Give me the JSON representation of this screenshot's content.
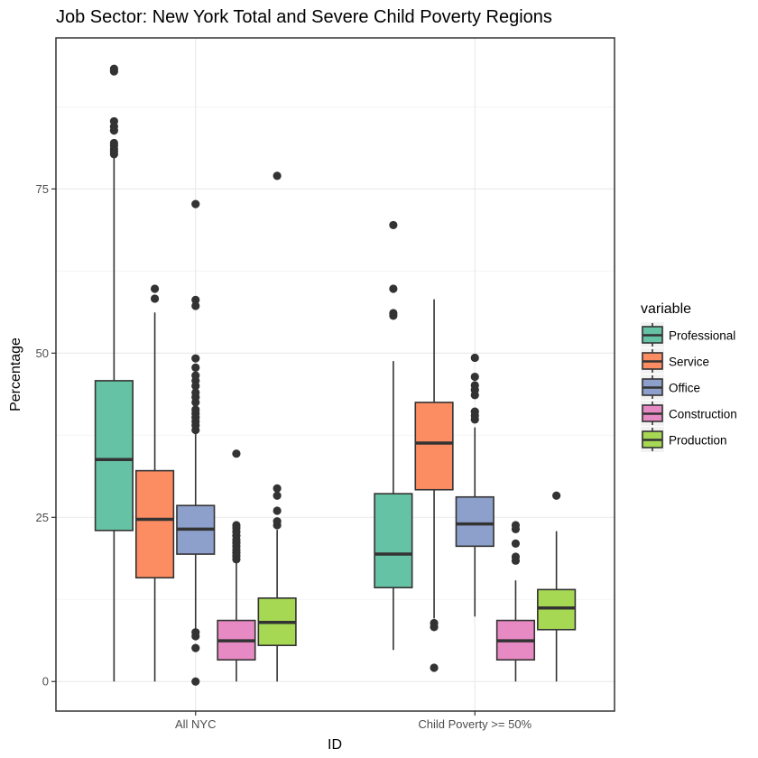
{
  "chart_data": {
    "type": "boxplot",
    "title": "Job Sector: New York Total and Severe Child Poverty Regions",
    "xlabel": "ID",
    "ylabel": "Percentage",
    "ylim": [
      -4.5,
      98
    ],
    "y_ticks": [
      0,
      25,
      50,
      75
    ],
    "grid": true,
    "legend": {
      "title": "variable",
      "placement": "right"
    },
    "categories": [
      "All NYC",
      "Child Poverty >= 50%"
    ],
    "series": [
      {
        "name": "Professional",
        "color": "#66c2a5",
        "boxes": [
          {
            "whisker_low": 0,
            "q1": 23,
            "median": 33.8,
            "q3": 45.8,
            "whisker_high": 79.8,
            "outliers": [
              80.3,
              80.7,
              81.1,
              81.6,
              82,
              83.9,
              84.5,
              85.3,
              92.9,
              93.3
            ]
          },
          {
            "whisker_low": 4.8,
            "q1": 14.3,
            "median": 19.4,
            "q3": 28.6,
            "whisker_high": 48.8,
            "outliers": [
              55.7,
              56.1,
              59.8,
              69.5
            ]
          }
        ]
      },
      {
        "name": "Service",
        "color": "#fc8d62",
        "boxes": [
          {
            "whisker_low": 0,
            "q1": 15.8,
            "median": 24.7,
            "q3": 32.1,
            "whisker_high": 56.2,
            "outliers": [
              58.3,
              59.8
            ]
          },
          {
            "whisker_low": 9.6,
            "q1": 29.2,
            "median": 36.3,
            "q3": 42.5,
            "whisker_high": 58.2,
            "outliers": [
              2.1,
              8.3,
              8.9
            ]
          }
        ]
      },
      {
        "name": "Office",
        "color": "#8da0cb",
        "boxes": [
          {
            "whisker_low": 7.8,
            "q1": 19.4,
            "median": 23.2,
            "q3": 26.8,
            "whisker_high": 37.8,
            "outliers": [
              0,
              5.1,
              6.9,
              7.5,
              38.3,
              39,
              39.6,
              40.2,
              40.8,
              41.4,
              42.5,
              43.3,
              44,
              45,
              45.8,
              46.6,
              47.8,
              49.2,
              57.2,
              58.1,
              72.7
            ]
          },
          {
            "whisker_low": 9.9,
            "q1": 20.6,
            "median": 24.0,
            "q3": 28.1,
            "whisker_high": 38.7,
            "outliers": [
              39.9,
              40.5,
              41.1,
              43.6,
              44.4,
              45.1,
              46.4,
              49.3
            ]
          }
        ]
      },
      {
        "name": "Construction",
        "color": "#e78ac3",
        "boxes": [
          {
            "whisker_low": 0,
            "q1": 3.3,
            "median": 6.2,
            "q3": 9.3,
            "whisker_high": 18.1,
            "outliers": [
              18.6,
              19.1,
              19.6,
              20.1,
              20.6,
              21.1,
              21.6,
              22.2,
              22.8,
              23.4,
              23.8,
              34.7
            ]
          },
          {
            "whisker_low": 0,
            "q1": 3.3,
            "median": 6.2,
            "q3": 9.3,
            "whisker_high": 15.4,
            "outliers": [
              18.4,
              19.0,
              21.0,
              23.2,
              23.8
            ]
          }
        ]
      },
      {
        "name": "Production",
        "color": "#a6d854",
        "boxes": [
          {
            "whisker_low": 0,
            "q1": 5.5,
            "median": 9.0,
            "q3": 12.7,
            "whisker_high": 23.1,
            "outliers": [
              23.8,
              24.4,
              26.0,
              28.3,
              29.4,
              77.0
            ]
          },
          {
            "whisker_low": 0,
            "q1": 7.9,
            "median": 11.2,
            "q3": 14.0,
            "whisker_high": 22.9,
            "outliers": [
              28.3
            ]
          }
        ]
      }
    ]
  }
}
